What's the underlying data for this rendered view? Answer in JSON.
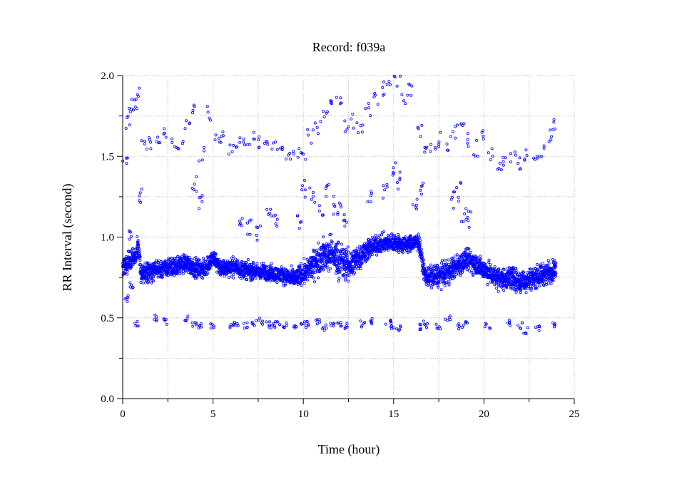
{
  "chart_data": {
    "type": "scatter",
    "title": "Record:  f039a",
    "xlabel": "Time (hour)",
    "ylabel": "RR Interval (second)",
    "xlim": [
      0,
      25
    ],
    "ylim": [
      0,
      2
    ],
    "xticks": [
      "0",
      "5",
      "10",
      "15",
      "20",
      "25"
    ],
    "yticks": [
      "0.0",
      "0.5",
      "1.0",
      "1.5",
      "2.0"
    ],
    "grid": true,
    "marker": "hollow-circle",
    "point_color": "#0000ff",
    "baseline_profile": {
      "x": [
        0.0,
        0.4,
        0.7,
        0.85,
        1.0,
        2.0,
        3.0,
        3.5,
        4.0,
        4.5,
        5.0,
        5.5,
        6.0,
        7.0,
        8.0,
        9.0,
        9.5,
        10.0,
        10.5,
        11.0,
        11.5,
        12.0,
        12.5,
        13.0,
        13.5,
        14.0,
        14.5,
        15.0,
        15.5,
        16.0,
        16.4,
        16.7,
        17.0,
        18.0,
        18.5,
        19.0,
        19.5,
        20.0,
        20.5,
        21.0,
        21.5,
        22.0,
        22.5,
        23.0,
        23.5,
        24.0
      ],
      "y": [
        0.82,
        0.85,
        0.88,
        0.95,
        0.78,
        0.8,
        0.82,
        0.84,
        0.81,
        0.8,
        0.87,
        0.8,
        0.82,
        0.79,
        0.78,
        0.76,
        0.74,
        0.78,
        0.82,
        0.88,
        0.9,
        0.86,
        0.82,
        0.87,
        0.92,
        0.95,
        0.96,
        0.97,
        0.95,
        0.96,
        0.97,
        0.77,
        0.75,
        0.78,
        0.82,
        0.86,
        0.84,
        0.8,
        0.76,
        0.74,
        0.75,
        0.72,
        0.74,
        0.76,
        0.78,
        0.8
      ]
    },
    "spread_profile": {
      "x": [
        0,
        5,
        9,
        10,
        11,
        12,
        13,
        14,
        15,
        16.5,
        17,
        19,
        20,
        22,
        24
      ],
      "y": [
        0.09,
        0.08,
        0.07,
        0.1,
        0.14,
        0.16,
        0.12,
        0.08,
        0.08,
        0.07,
        0.1,
        0.1,
        0.09,
        0.1,
        0.09
      ]
    },
    "upper_cluster": {
      "x": [
        0.1,
        0.3,
        0.5,
        0.7,
        0.9,
        1.2,
        1.6,
        2.0,
        2.4,
        2.8,
        3.2,
        3.6,
        4.0,
        4.4,
        4.8,
        5.2,
        5.6,
        6.0,
        6.4,
        6.8,
        7.2,
        7.6,
        8.0,
        8.4,
        8.8,
        9.2,
        9.6,
        10.0,
        10.4,
        10.8,
        11.2,
        11.6,
        12.0,
        12.4,
        12.8,
        13.2,
        13.6,
        14.0,
        14.4,
        14.8,
        15.2,
        15.6,
        16.0,
        16.4,
        16.8,
        17.2,
        17.6,
        18.0,
        18.4,
        18.8,
        19.2,
        19.6,
        20.0,
        20.4,
        20.8,
        21.2,
        21.6,
        22.0,
        22.4,
        22.8,
        23.2,
        23.6,
        23.9
      ],
      "y": [
        1.47,
        1.72,
        1.82,
        1.83,
        1.88,
        1.55,
        1.58,
        1.62,
        1.65,
        1.6,
        1.57,
        1.72,
        1.78,
        1.52,
        1.76,
        1.6,
        1.63,
        1.55,
        1.58,
        1.6,
        1.62,
        1.58,
        1.6,
        1.55,
        1.52,
        1.48,
        1.5,
        1.52,
        1.62,
        1.67,
        1.75,
        1.85,
        1.87,
        1.7,
        1.72,
        1.65,
        1.8,
        1.85,
        1.92,
        1.98,
        1.95,
        1.85,
        1.9,
        1.65,
        1.52,
        1.56,
        1.6,
        1.58,
        1.65,
        1.7,
        1.6,
        1.55,
        1.62,
        1.5,
        1.45,
        1.48,
        1.5,
        1.45,
        1.52,
        1.47,
        1.55,
        1.62,
        1.7
      ]
    },
    "lower_cluster": {
      "x": [
        0.2,
        0.5,
        0.8,
        1.8,
        2.3,
        3.5,
        4.0,
        4.2,
        4.9,
        6.0,
        6.3,
        6.8,
        7.3,
        7.6,
        8.0,
        8.3,
        8.6,
        9.0,
        9.6,
        10.0,
        10.2,
        10.8,
        11.2,
        11.6,
        12.0,
        12.4,
        13.3,
        13.8,
        14.7,
        15.0,
        15.3,
        16.5,
        16.8,
        17.5,
        18.0,
        18.7,
        19.0,
        20.2,
        21.4,
        22.0,
        22.3,
        23.0,
        23.8
      ],
      "y": [
        0.62,
        0.7,
        0.46,
        0.5,
        0.48,
        0.5,
        0.46,
        0.45,
        0.45,
        0.45,
        0.46,
        0.45,
        0.47,
        0.48,
        0.46,
        0.45,
        0.47,
        0.45,
        0.44,
        0.45,
        0.46,
        0.47,
        0.44,
        0.45,
        0.46,
        0.45,
        0.46,
        0.48,
        0.47,
        0.45,
        0.44,
        0.44,
        0.46,
        0.45,
        0.5,
        0.45,
        0.46,
        0.45,
        0.47,
        0.45,
        0.42,
        0.44,
        0.46
      ]
    },
    "middle_cluster": {
      "x": [
        0.5,
        0.9,
        4.0,
        4.3,
        6.5,
        7.0,
        7.5,
        8.1,
        8.5,
        9.8,
        10.0,
        10.5,
        11.0,
        11.3,
        11.7,
        12.0,
        12.3,
        13.7,
        14.5,
        15.0,
        15.2,
        16.2,
        16.5,
        18.3,
        18.6,
        18.9,
        19.2
      ],
      "y": [
        1.0,
        1.25,
        1.32,
        1.2,
        1.12,
        1.05,
        1.02,
        1.15,
        1.1,
        1.1,
        1.3,
        1.25,
        1.15,
        1.3,
        1.2,
        1.18,
        1.1,
        1.25,
        1.3,
        1.4,
        1.35,
        1.22,
        1.28,
        1.22,
        1.28,
        1.15,
        1.1
      ]
    }
  }
}
